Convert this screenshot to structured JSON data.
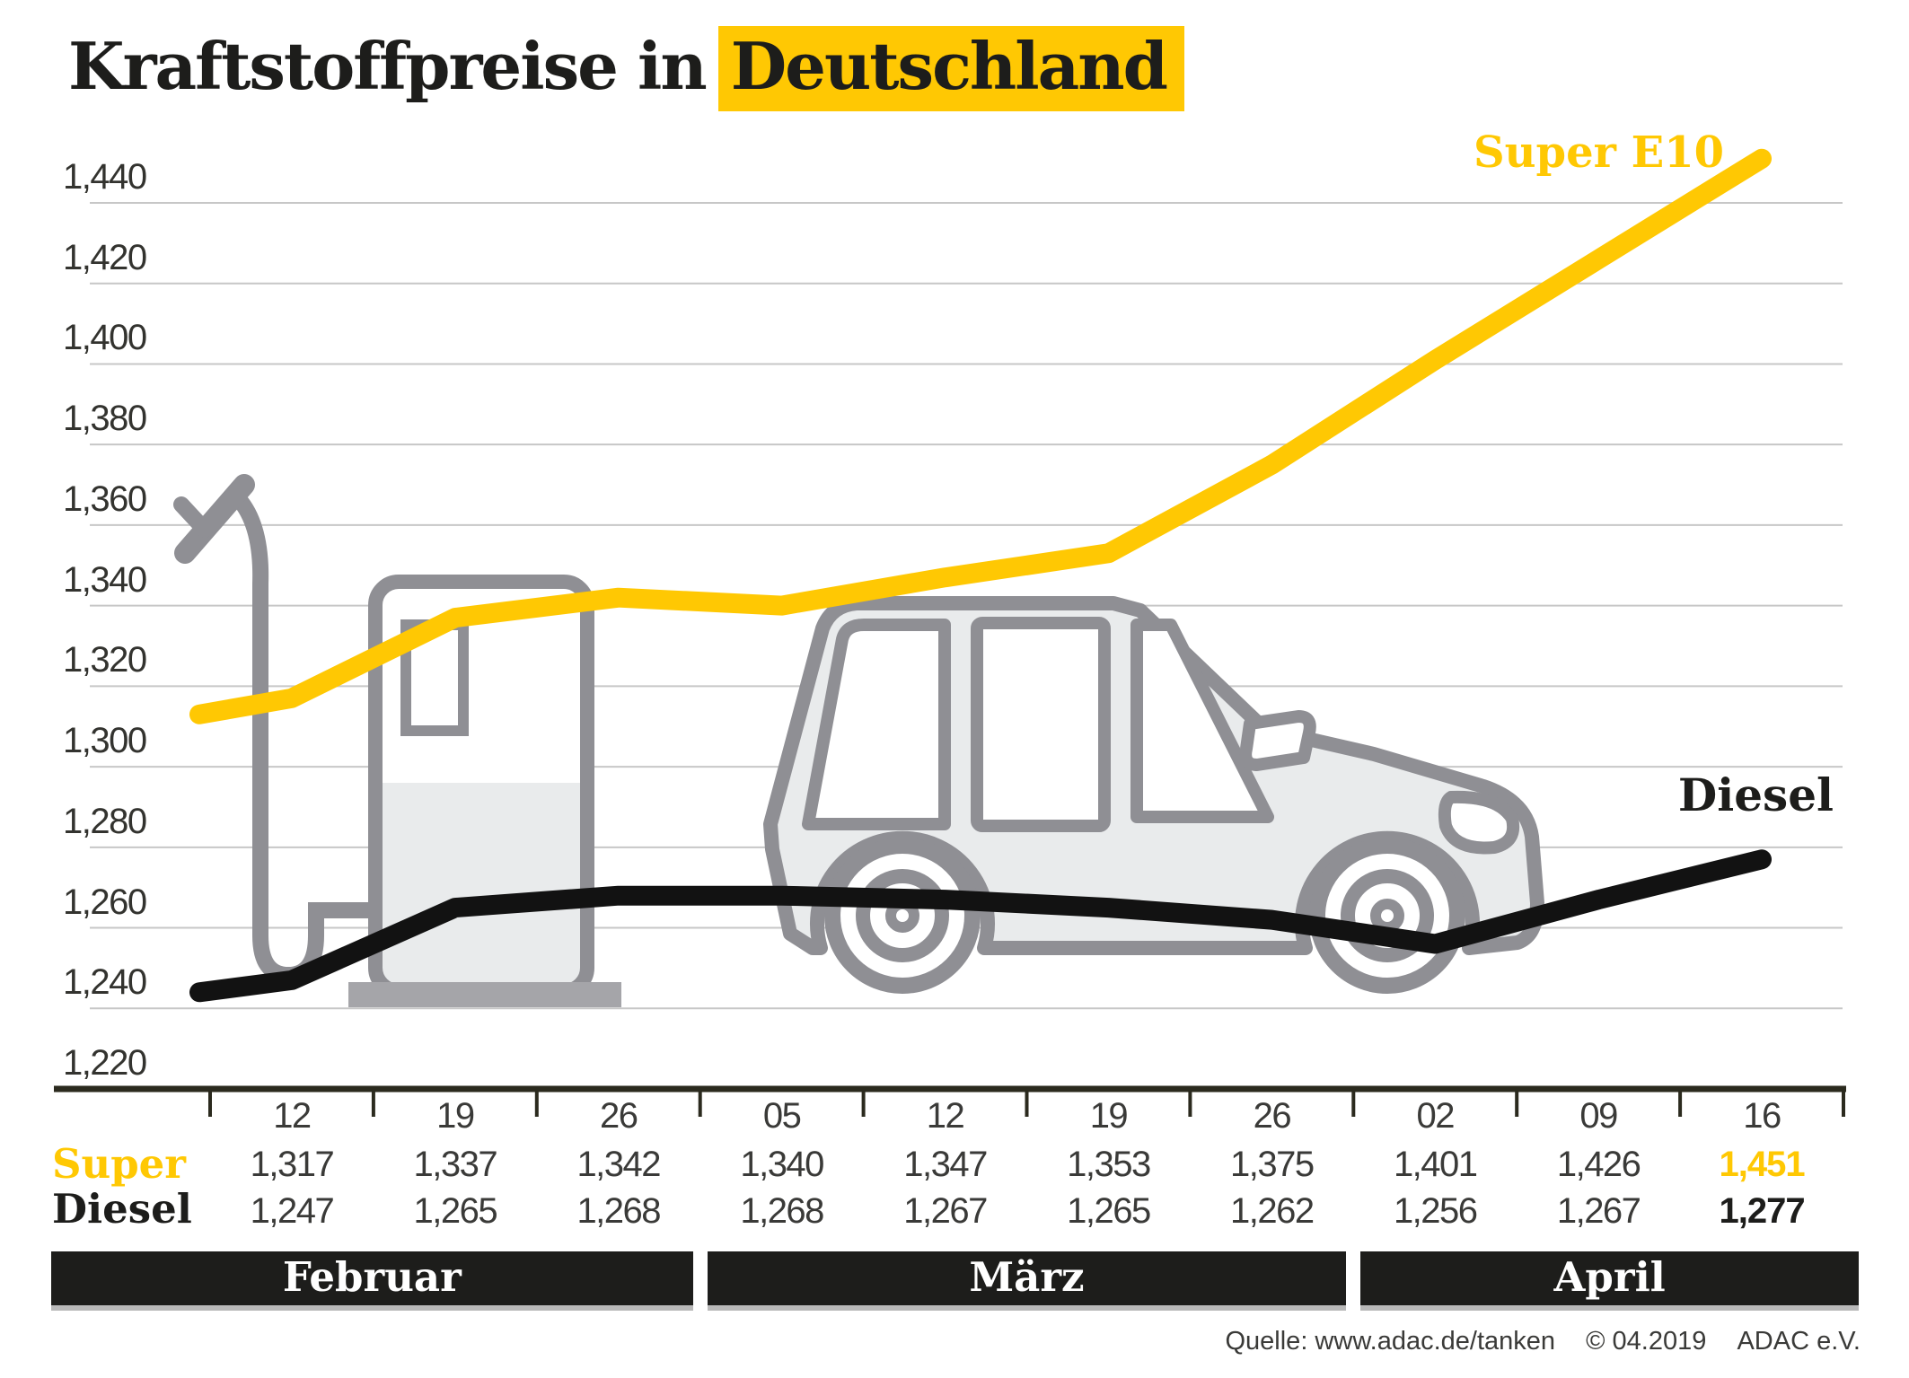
{
  "title": {
    "prefix": "Kraftstoffpreise in",
    "highlight": "Deutschland"
  },
  "colors": {
    "accent_yellow": "#FFC803",
    "near_black": "#121212",
    "label_black": "#1D1D1B",
    "text_gray": "#3A3A38",
    "grid_gray": "#C7C7C7",
    "axis_dark": "#2B2A1E",
    "graphic_stroke_gray": "#8F8F94",
    "graphic_fill_gray": "#E9EBEC",
    "base_gray": "#A5A5A9",
    "month_bar_bg": "#1D1D1B",
    "month_bar_text": "#FFFFFF"
  },
  "chart_data": {
    "type": "line",
    "categories": [
      "12",
      "19",
      "26",
      "05",
      "12",
      "19",
      "26",
      "02",
      "09",
      "16"
    ],
    "months": [
      {
        "label": "Februar",
        "columns": 3
      },
      {
        "label": "März",
        "columns": 4
      },
      {
        "label": "April",
        "columns": 3
      }
    ],
    "series": [
      {
        "name": "Super E10",
        "curve_label": "Super E10",
        "row_label": "Super",
        "color": "#FFC803",
        "values": [
          "1,317",
          "1,337",
          "1,342",
          "1,340",
          "1,347",
          "1,353",
          "1,375",
          "1,401",
          "1,426",
          "1,451"
        ],
        "lead_in_value": "1,313",
        "last_value_emphasized": true
      },
      {
        "name": "Diesel",
        "curve_label": "Diesel",
        "row_label": "Diesel",
        "color": "#121212",
        "values": [
          "1,247",
          "1,265",
          "1,268",
          "1,268",
          "1,267",
          "1,265",
          "1,262",
          "1,256",
          "1,267",
          "1,277"
        ],
        "lead_in_value": "1,244",
        "last_value_emphasized": true
      }
    ],
    "y_tick_labels": [
      "1,440",
      "1,420",
      "1,400",
      "1,380",
      "1,360",
      "1,340",
      "1,320",
      "1,300",
      "1,280",
      "1,260",
      "1,240",
      "1,220"
    ],
    "y_min": 1220,
    "y_max": 1440,
    "y_step": 20,
    "grid": true,
    "legend_position": "inline-end-of-line-labels",
    "background_graphics": [
      "fuel-pump",
      "car"
    ]
  },
  "source": {
    "parts": [
      "Quelle: www.adac.de/tanken",
      "© 04.2019",
      "ADAC e.V."
    ]
  }
}
